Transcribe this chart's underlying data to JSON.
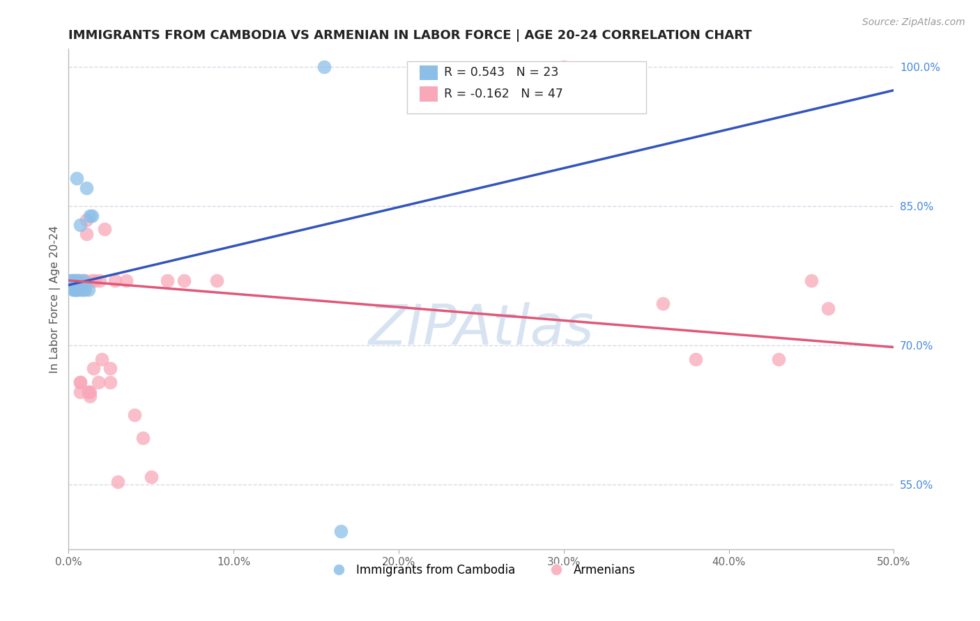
{
  "title": "IMMIGRANTS FROM CAMBODIA VS ARMENIAN IN LABOR FORCE | AGE 20-24 CORRELATION CHART",
  "source": "Source: ZipAtlas.com",
  "ylabel": "In Labor Force | Age 20-24",
  "xlim": [
    0.0,
    0.5
  ],
  "ylim": [
    0.48,
    1.02
  ],
  "xticks": [
    0.0,
    0.1,
    0.2,
    0.3,
    0.4,
    0.5
  ],
  "xticklabels": [
    "0.0%",
    "10.0%",
    "20.0%",
    "30.0%",
    "40.0%",
    "50.0%"
  ],
  "yticks": [
    0.55,
    0.7,
    0.85,
    1.0
  ],
  "yticklabels": [
    "55.0%",
    "70.0%",
    "85.0%",
    "100.0%"
  ],
  "background_color": "#ffffff",
  "grid_color": "#d8d8e8",
  "watermark": "ZIPAtlas",
  "watermark_color": "#b8cce8",
  "legend_R_cambodia": "R = 0.543",
  "legend_N_cambodia": "N = 23",
  "legend_R_armenian": "R = -0.162",
  "legend_N_armenian": "N = 47",
  "legend_label_cambodia": "Immigrants from Cambodia",
  "legend_label_armenian": "Armenians",
  "cambodia_color": "#8bbfe8",
  "armenian_color": "#f8a8b8",
  "cambodia_line_color": "#3355bb",
  "armenian_line_color": "#e05878",
  "cambodia_line_x0": 0.0,
  "cambodia_line_y0": 0.765,
  "cambodia_line_x1": 0.5,
  "cambodia_line_y1": 0.975,
  "armenian_line_x0": 0.0,
  "armenian_line_y0": 0.77,
  "armenian_line_x1": 0.5,
  "armenian_line_y1": 0.698,
  "cambodia_x": [
    0.001,
    0.002,
    0.003,
    0.003,
    0.003,
    0.004,
    0.004,
    0.004,
    0.005,
    0.005,
    0.005,
    0.006,
    0.006,
    0.007,
    0.008,
    0.009,
    0.01,
    0.011,
    0.012,
    0.013,
    0.014,
    0.155,
    0.165
  ],
  "cambodia_y": [
    0.77,
    0.77,
    0.77,
    0.76,
    0.76,
    0.77,
    0.77,
    0.76,
    0.88,
    0.76,
    0.76,
    0.77,
    0.76,
    0.83,
    0.76,
    0.77,
    0.76,
    0.87,
    0.76,
    0.84,
    0.84,
    1.0,
    0.5
  ],
  "armenian_x": [
    0.002,
    0.003,
    0.004,
    0.004,
    0.005,
    0.005,
    0.006,
    0.006,
    0.006,
    0.007,
    0.007,
    0.007,
    0.008,
    0.008,
    0.009,
    0.009,
    0.01,
    0.011,
    0.011,
    0.012,
    0.012,
    0.013,
    0.013,
    0.014,
    0.015,
    0.016,
    0.018,
    0.019,
    0.02,
    0.022,
    0.025,
    0.025,
    0.028,
    0.03,
    0.035,
    0.04,
    0.045,
    0.05,
    0.06,
    0.07,
    0.09,
    0.3,
    0.36,
    0.38,
    0.43,
    0.45,
    0.46
  ],
  "armenian_y": [
    0.77,
    0.77,
    0.77,
    0.76,
    0.77,
    0.76,
    0.77,
    0.77,
    0.77,
    0.66,
    0.66,
    0.65,
    0.77,
    0.76,
    0.77,
    0.76,
    0.77,
    0.82,
    0.835,
    0.65,
    0.65,
    0.65,
    0.645,
    0.77,
    0.675,
    0.77,
    0.66,
    0.77,
    0.685,
    0.825,
    0.675,
    0.66,
    0.77,
    0.553,
    0.77,
    0.625,
    0.6,
    0.558,
    0.77,
    0.77,
    0.77,
    1.0,
    0.745,
    0.685,
    0.685,
    0.77,
    0.74
  ]
}
